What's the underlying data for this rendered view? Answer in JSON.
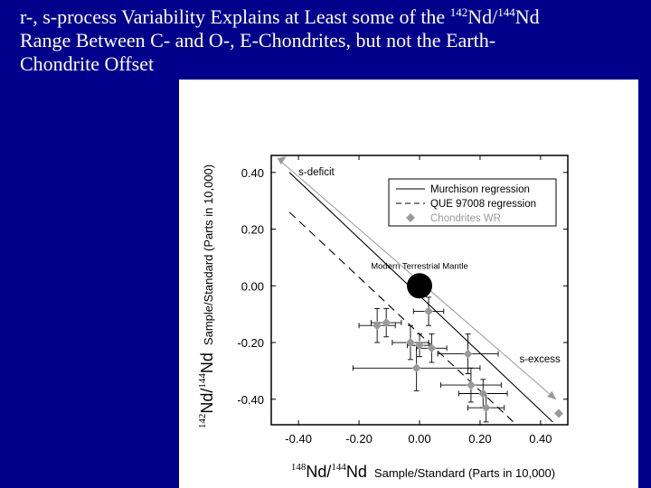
{
  "slide": {
    "title_line1_pre": "r-, s-process Variability Explains at Least some of the ",
    "title_sup1": "142",
    "title_mid1": "Nd/",
    "title_sup2": "144",
    "title_mid2": "Nd",
    "title_line2": "Range Between C- and O-, E-Chondrites, but not the Earth-",
    "title_line3": "Chondrite Offset"
  },
  "chart_data": {
    "type": "scatter",
    "title": "",
    "xlabel": {
      "sup1": "148",
      "part1": "Nd/",
      "sup2": "144",
      "part2": "Nd",
      "suffix": "Sample/Standard (Parts in 10,000)"
    },
    "ylabel": {
      "sup1": "142",
      "part1": "Nd/",
      "sup2": "144",
      "part2": "Nd",
      "suffix": "Sample/Standard (Parts in 10,000)"
    },
    "xlim": [
      -0.49,
      0.49
    ],
    "ylim": [
      -0.49,
      0.46
    ],
    "xticks": [
      -0.4,
      -0.2,
      0.0,
      0.2,
      0.4
    ],
    "yticks": [
      -0.4,
      -0.2,
      0.0,
      0.2,
      0.4
    ],
    "xtick_labels": [
      "-0.40",
      "-0.20",
      "0.00",
      "0.20",
      "0.40"
    ],
    "ytick_labels": [
      "-0.40",
      "-0.20",
      "0.00",
      "0.20",
      "0.40"
    ],
    "grid": false,
    "legend": {
      "placement": "top-right",
      "entries": [
        {
          "label": "Murchison regression",
          "style": "solid-line"
        },
        {
          "label": "QUE 97008 regression",
          "style": "dashed-line"
        },
        {
          "label": "Chondrites WR",
          "style": "gray-diamond"
        }
      ]
    },
    "series": [
      {
        "name": "Chondrites WR",
        "color": "#999999",
        "points": [
          {
            "x": -0.14,
            "y": -0.14,
            "xerr": 0.06,
            "yerr": 0.06
          },
          {
            "x": -0.11,
            "y": -0.13,
            "xerr": 0.05,
            "yerr": 0.05
          },
          {
            "x": -0.03,
            "y": -0.2,
            "xerr": 0.06,
            "yerr": 0.06
          },
          {
            "x": 0.0,
            "y": -0.21,
            "xerr": 0.04,
            "yerr": 0.04
          },
          {
            "x": 0.03,
            "y": -0.09,
            "xerr": 0.05,
            "yerr": 0.05
          },
          {
            "x": 0.04,
            "y": -0.22,
            "xerr": 0.05,
            "yerr": 0.05
          },
          {
            "x": -0.01,
            "y": -0.29,
            "xerr": 0.21,
            "yerr": 0.08
          },
          {
            "x": 0.16,
            "y": -0.24,
            "xerr": 0.1,
            "yerr": 0.07
          },
          {
            "x": 0.17,
            "y": -0.35,
            "xerr": 0.1,
            "yerr": 0.06
          },
          {
            "x": 0.21,
            "y": -0.38,
            "xerr": 0.08,
            "yerr": 0.05
          },
          {
            "x": 0.22,
            "y": -0.43,
            "xerr": 0.06,
            "yerr": 0.05
          },
          {
            "x": 0.46,
            "y": -0.45,
            "xerr": 0.0,
            "yerr": 0.0
          }
        ]
      }
    ],
    "regressions": [
      {
        "name": "Murchison regression",
        "style": "solid",
        "color": "#000000",
        "from": [
          -0.43,
          0.4
        ],
        "to": [
          0.44,
          -0.48
        ]
      },
      {
        "name": "QUE 97008 regression",
        "style": "dashed",
        "color": "#000000",
        "from": [
          -0.43,
          0.26
        ],
        "to": [
          0.31,
          -0.48
        ]
      }
    ],
    "arrow": {
      "color": "#999999",
      "from": [
        -0.47,
        0.45
      ],
      "to": [
        0.45,
        -0.4
      ]
    },
    "modern_terrestrial_mantle": {
      "x": 0.0,
      "y": 0.0,
      "label": "Modern Terrestrial Mantle"
    },
    "annotations": [
      {
        "text": "s-deficit",
        "x": -0.4,
        "y": 0.39
      },
      {
        "text": "s-excess",
        "x": 0.33,
        "y": -0.27
      }
    ]
  }
}
